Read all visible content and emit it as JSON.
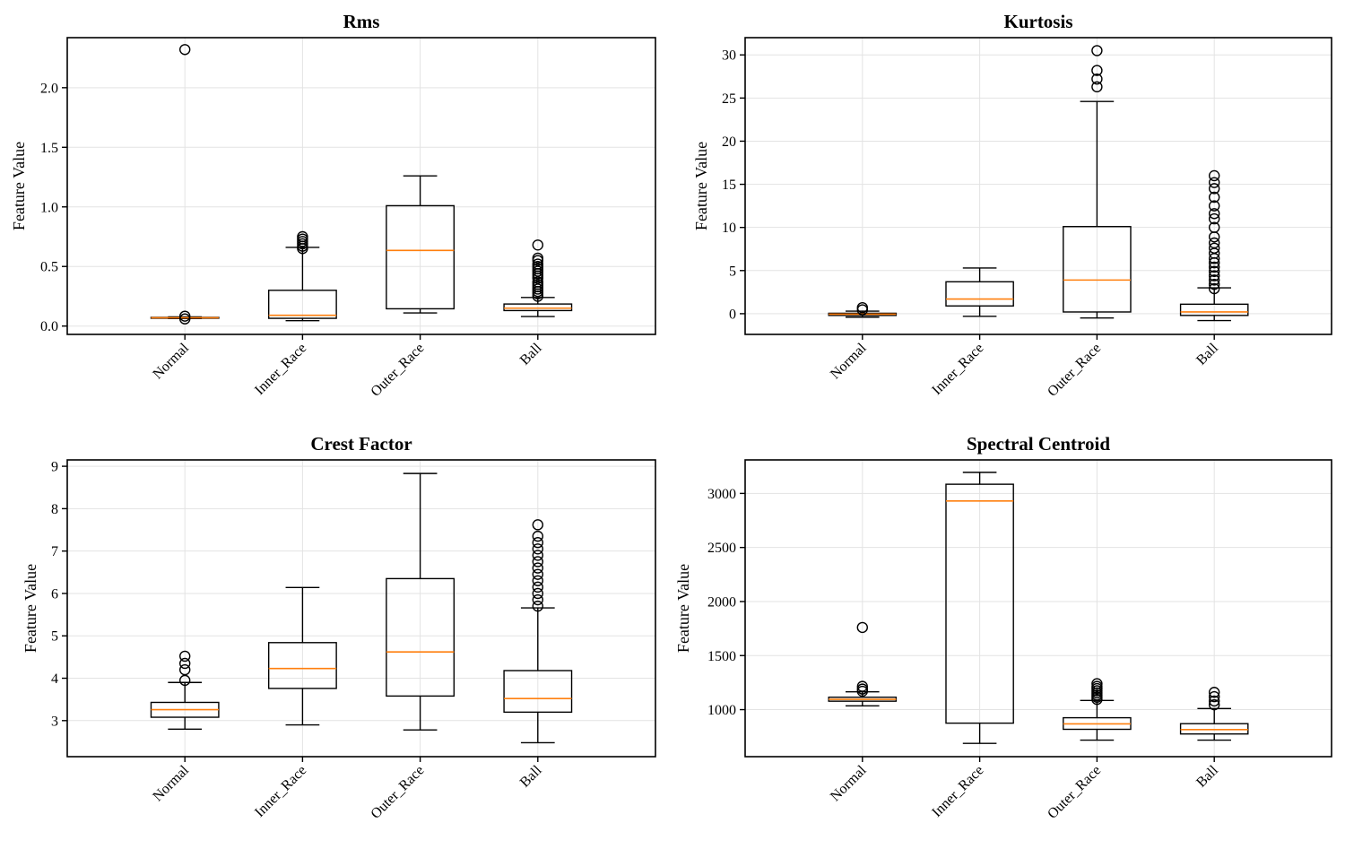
{
  "chart_data": [
    {
      "type": "box",
      "title": "Rms",
      "xlabel": "",
      "ylabel": "Feature Value",
      "categories": [
        "Normal",
        "Inner_Race",
        "Outer_Race",
        "Ball"
      ],
      "ylim": [
        -0.07,
        2.42
      ],
      "yticks": [
        0.0,
        0.5,
        1.0,
        1.5,
        2.0
      ],
      "ytick_labels": [
        "0.0",
        "0.5",
        "1.0",
        "1.5",
        "2.0"
      ],
      "grid": true,
      "boxes": [
        {
          "category": "Normal",
          "whislo": 0.063,
          "q1": 0.066,
          "med": 0.07,
          "q3": 0.073,
          "whishi": 0.077,
          "fliers": [
            0.06,
            0.083,
            2.32
          ]
        },
        {
          "category": "Inner_Race",
          "whislo": 0.045,
          "q1": 0.065,
          "med": 0.09,
          "q3": 0.3,
          "whishi": 0.66,
          "fliers": [
            0.65,
            0.67,
            0.69,
            0.71,
            0.73,
            0.75
          ]
        },
        {
          "category": "Outer_Race",
          "whislo": 0.11,
          "q1": 0.145,
          "med": 0.635,
          "q3": 1.01,
          "whishi": 1.26,
          "fliers": []
        },
        {
          "category": "Ball",
          "whislo": 0.08,
          "q1": 0.13,
          "med": 0.15,
          "q3": 0.185,
          "whishi": 0.24,
          "fliers": [
            0.25,
            0.27,
            0.29,
            0.31,
            0.33,
            0.35,
            0.37,
            0.4,
            0.42,
            0.44,
            0.46,
            0.48,
            0.5,
            0.52,
            0.55,
            0.57,
            0.68
          ]
        }
      ]
    },
    {
      "type": "box",
      "title": "Kurtosis",
      "xlabel": "",
      "ylabel": "Feature Value",
      "categories": [
        "Normal",
        "Inner_Race",
        "Outer_Race",
        "Ball"
      ],
      "ylim": [
        -2.4,
        32.0
      ],
      "yticks": [
        0,
        5,
        10,
        15,
        20,
        25,
        30
      ],
      "ytick_labels": [
        "0",
        "5",
        "10",
        "15",
        "20",
        "25",
        "30"
      ],
      "grid": true,
      "boxes": [
        {
          "category": "Normal",
          "whislo": -0.4,
          "q1": -0.2,
          "med": -0.05,
          "q3": 0.05,
          "whishi": 0.3,
          "fliers": [
            0.45,
            0.7
          ]
        },
        {
          "category": "Inner_Race",
          "whislo": -0.3,
          "q1": 0.9,
          "med": 1.7,
          "q3": 3.7,
          "whishi": 5.3,
          "fliers": []
        },
        {
          "category": "Outer_Race",
          "whislo": -0.5,
          "q1": 0.2,
          "med": 3.9,
          "q3": 10.1,
          "whishi": 24.6,
          "fliers": [
            26.3,
            27.2,
            28.2,
            30.5
          ]
        },
        {
          "category": "Ball",
          "whislo": -0.8,
          "q1": -0.2,
          "med": 0.2,
          "q3": 1.1,
          "whishi": 3.0,
          "fliers": [
            2.9,
            3.4,
            3.9,
            4.4,
            4.9,
            5.4,
            5.9,
            6.4,
            7.0,
            7.6,
            8.2,
            8.9,
            10.0,
            11.0,
            11.6,
            12.5,
            13.5,
            14.5,
            15.2,
            16.0
          ]
        }
      ]
    },
    {
      "type": "box",
      "title": "Crest Factor",
      "xlabel": "",
      "ylabel": "Feature Value",
      "categories": [
        "Normal",
        "Inner_Race",
        "Outer_Race",
        "Ball"
      ],
      "ylim": [
        2.15,
        9.15
      ],
      "yticks": [
        3,
        4,
        5,
        6,
        7,
        8,
        9
      ],
      "ytick_labels": [
        "3",
        "4",
        "5",
        "6",
        "7",
        "8",
        "9"
      ],
      "grid": true,
      "boxes": [
        {
          "category": "Normal",
          "whislo": 2.8,
          "q1": 3.08,
          "med": 3.26,
          "q3": 3.43,
          "whishi": 3.9,
          "fliers": [
            3.95,
            4.2,
            4.35,
            4.52
          ]
        },
        {
          "category": "Inner_Race",
          "whislo": 2.9,
          "q1": 3.76,
          "med": 4.23,
          "q3": 4.84,
          "whishi": 6.14,
          "fliers": []
        },
        {
          "category": "Outer_Race",
          "whislo": 2.78,
          "q1": 3.58,
          "med": 4.62,
          "q3": 6.35,
          "whishi": 8.83,
          "fliers": []
        },
        {
          "category": "Ball",
          "whislo": 2.48,
          "q1": 3.2,
          "med": 3.52,
          "q3": 4.18,
          "whishi": 5.66,
          "fliers": [
            5.7,
            5.85,
            6.0,
            6.15,
            6.3,
            6.45,
            6.6,
            6.75,
            6.9,
            7.05,
            7.2,
            7.35,
            7.62
          ]
        }
      ]
    },
    {
      "type": "box",
      "title": "Spectral Centroid",
      "xlabel": "",
      "ylabel": "Feature Value",
      "categories": [
        "Normal",
        "Inner_Race",
        "Outer_Race",
        "Ball"
      ],
      "ylim": [
        565,
        3310
      ],
      "yticks": [
        1000,
        1500,
        2000,
        2500,
        3000
      ],
      "ytick_labels": [
        "1000",
        "1500",
        "2000",
        "2500",
        "3000"
      ],
      "grid": true,
      "boxes": [
        {
          "category": "Normal",
          "whislo": 1035,
          "q1": 1078,
          "med": 1095,
          "q3": 1115,
          "whishi": 1165,
          "fliers": [
            1170,
            1190,
            1215,
            1760
          ]
        },
        {
          "category": "Inner_Race",
          "whislo": 688,
          "q1": 875,
          "med": 2930,
          "q3": 3085,
          "whishi": 3195,
          "fliers": []
        },
        {
          "category": "Outer_Race",
          "whislo": 718,
          "q1": 818,
          "med": 868,
          "q3": 925,
          "whishi": 1085,
          "fliers": [
            1095,
            1115,
            1135,
            1155,
            1175,
            1195,
            1215,
            1240
          ]
        },
        {
          "category": "Ball",
          "whislo": 718,
          "q1": 775,
          "med": 815,
          "q3": 870,
          "whishi": 1010,
          "fliers": [
            1045,
            1080,
            1120,
            1160
          ]
        }
      ]
    }
  ]
}
